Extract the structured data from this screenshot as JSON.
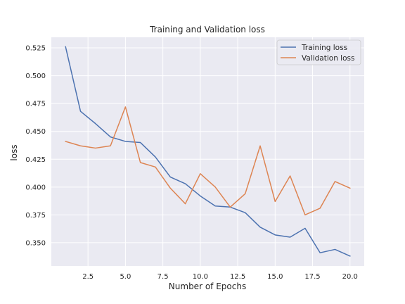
{
  "chart_data": {
    "type": "line",
    "title": "Training and Validation loss",
    "xlabel": "Number of Epochs",
    "ylabel": "loss",
    "xlim": [
      0.05,
      20.95
    ],
    "ylim": [
      0.3291,
      0.5345
    ],
    "xticks": [
      2.5,
      5.0,
      7.5,
      10.0,
      12.5,
      15.0,
      17.5,
      20.0
    ],
    "xtick_labels": [
      "2.5",
      "5.0",
      "7.5",
      "10.0",
      "12.5",
      "15.0",
      "17.5",
      "20.0"
    ],
    "yticks": [
      0.35,
      0.375,
      0.4,
      0.425,
      0.45,
      0.475,
      0.5,
      0.525
    ],
    "ytick_labels": [
      "0.350",
      "0.375",
      "0.400",
      "0.425",
      "0.450",
      "0.475",
      "0.500",
      "0.525"
    ],
    "grid": true,
    "legend_position": "top-right",
    "x": [
      1,
      2,
      3,
      4,
      5,
      6,
      7,
      8,
      9,
      10,
      11,
      12,
      13,
      14,
      15,
      16,
      17,
      18,
      19,
      20
    ],
    "series": [
      {
        "name": "Training loss",
        "color": "#4c72b0",
        "values": [
          0.526,
          0.468,
          0.457,
          0.445,
          0.441,
          0.44,
          0.427,
          0.409,
          0.403,
          0.392,
          0.383,
          0.382,
          0.377,
          0.364,
          0.357,
          0.355,
          0.363,
          0.341,
          0.344,
          0.338
        ]
      },
      {
        "name": "Validation loss",
        "color": "#dd8452",
        "values": [
          0.441,
          0.437,
          0.435,
          0.437,
          0.472,
          0.422,
          0.418,
          0.399,
          0.385,
          0.412,
          0.4,
          0.382,
          0.394,
          0.437,
          0.387,
          0.41,
          0.375,
          0.381,
          0.405,
          0.399
        ]
      }
    ],
    "style": {
      "plot_background": "#eaeaf2",
      "grid_color": "#ffffff"
    }
  }
}
